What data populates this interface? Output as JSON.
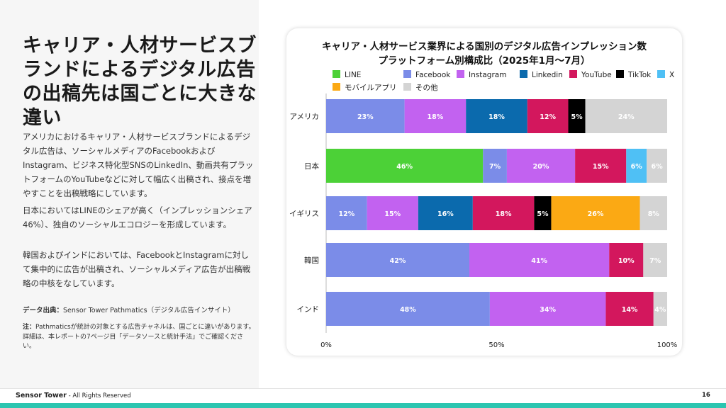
{
  "left": {
    "heading": "キャリア・人材サービスブランドによるデジタル広告の出稿先は国ごとに大きな違い",
    "paragraphs": [
      "アメリカにおけるキャリア・人材サービスブランドによるデジタル広告は、ソーシャルメディアのFacebookおよびInstagram、ビジネス特化型SNSのLinkedIn、動画共有プラットフォームのYouTubeなどに対して幅広く出稿され、接点を増やすことを出稿戦略にしています。",
      "日本においてはLINEのシェアが高く（インプレッションシェア46%）、独自のソーシャルエコロジーを形成しています。",
      "韓国およびインドにおいては、FacebookとInstagramに対して集中的に広告が出稿され、ソーシャルメディア広告が出稿戦略の中核をなしています。"
    ],
    "source_label": "データ出典：",
    "source_text": "Sensor Tower Pathmatics（デジタル広告インサイト）",
    "note_label": "注：",
    "note_text": "Pathmaticsが統計の対象とする広告チャネルは、国ごとに違いがあります。詳細は、本レポートの7ページ目「データソースと統計手法」でご確認ください。"
  },
  "footer": {
    "brand": "Sensor Tower",
    "rights": " - All Rights Reserved",
    "page": "16"
  },
  "chart_data": {
    "type": "bar",
    "orientation": "horizontal",
    "stacked": true,
    "title_line1": "キャリア・人材サービス業界による国別のデジタル広告インプレッション数",
    "title_line2": "プラットフォーム別構成比（2025年1月〜7月）",
    "categories": [
      "アメリカ",
      "日本",
      "イギリス",
      "韓国",
      "インド"
    ],
    "x_ticks": [
      "0%",
      "50%",
      "100%"
    ],
    "xlim": [
      0,
      100
    ],
    "legend_position": "top",
    "series": [
      {
        "name": "LINE",
        "color": "#4cd137",
        "values": [
          0,
          46,
          0,
          0,
          0
        ],
        "labels": [
          "",
          "46%",
          "",
          "",
          ""
        ]
      },
      {
        "name": "Facebook",
        "color": "#7b8ce8",
        "values": [
          23,
          7,
          12,
          42,
          48
        ],
        "labels": [
          "23%",
          "7%",
          "12%",
          "42%",
          "48%"
        ]
      },
      {
        "name": "Instagram",
        "color": "#c262f0",
        "values": [
          18,
          20,
          15,
          41,
          34
        ],
        "labels": [
          "18%",
          "20%",
          "15%",
          "41%",
          "34%"
        ]
      },
      {
        "name": "Linkedin",
        "color": "#0b6aad",
        "values": [
          18,
          0,
          16,
          0,
          0
        ],
        "labels": [
          "18%",
          "",
          "16%",
          "",
          ""
        ]
      },
      {
        "name": "YouTube",
        "color": "#d3175d",
        "values": [
          12,
          15,
          18,
          10,
          14
        ],
        "labels": [
          "12%",
          "15%",
          "18%",
          "10%",
          "14%"
        ]
      },
      {
        "name": "TikTok",
        "color": "#000000",
        "values": [
          5,
          0,
          5,
          0,
          0
        ],
        "labels": [
          "5%",
          "",
          "5%",
          "",
          ""
        ]
      },
      {
        "name": "X",
        "color": "#4fc0f5",
        "values": [
          0,
          6,
          0,
          0,
          0
        ],
        "labels": [
          "",
          "6%",
          "",
          "",
          ""
        ]
      },
      {
        "name": "モバイルアプリ",
        "color": "#fba914",
        "values": [
          0,
          0,
          26,
          0,
          0
        ],
        "labels": [
          "",
          "",
          "26%",
          "",
          ""
        ]
      },
      {
        "name": "その他",
        "color": "#d4d4d4",
        "values": [
          24,
          6,
          8,
          7,
          4
        ],
        "labels": [
          "24%",
          "6%",
          "8%",
          "7%",
          "4%"
        ]
      }
    ]
  }
}
